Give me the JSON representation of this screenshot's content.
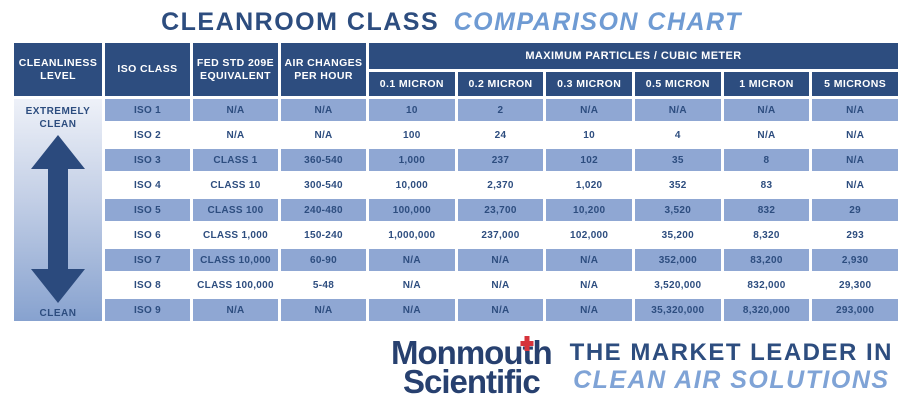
{
  "title": {
    "part1": "CLEANROOM CLASS",
    "part2": "COMPARISON CHART"
  },
  "colors": {
    "header_navy": "#2d4d7f",
    "row_light_blue": "#8fa7d3",
    "row_white": "#ffffff",
    "title_accent_blue": "#6f9bd3",
    "tagline_light_blue": "#7fa3d6",
    "logo_navy": "#27406f",
    "logo_cross_red": "#d6333b",
    "gradient_top": "#eef1f8",
    "gradient_bottom": "#87a2cf"
  },
  "icons": {
    "cleanliness_scale": "double-headed-vertical-arrow"
  },
  "chart_data": {
    "type": "table",
    "title": "CLEANROOM CLASS COMPARISON CHART",
    "row_group_headers": [
      "CLEANLINESS LEVEL",
      "ISO CLASS",
      "FED STD 209E EQUIVALENT",
      "AIR CHANGES PER HOUR"
    ],
    "particles_group_header": "MAXIMUM PARTICLES / CUBIC METER",
    "micron_headers": [
      "0.1 MICRON",
      "0.2 MICRON",
      "0.3 MICRON",
      "0.5 MICRON",
      "1 MICRON",
      "5 MICRONS"
    ],
    "cleanliness_scale": {
      "top": "EXTREMELY CLEAN",
      "bottom": "CLEAN"
    },
    "rows": [
      {
        "iso_class": "ISO 1",
        "fed_std_209e": "N/A",
        "air_changes_per_hour": "N/A",
        "particles": [
          "10",
          "2",
          "N/A",
          "N/A",
          "N/A",
          "N/A"
        ]
      },
      {
        "iso_class": "ISO 2",
        "fed_std_209e": "N/A",
        "air_changes_per_hour": "N/A",
        "particles": [
          "100",
          "24",
          "10",
          "4",
          "N/A",
          "N/A"
        ]
      },
      {
        "iso_class": "ISO 3",
        "fed_std_209e": "CLASS 1",
        "air_changes_per_hour": "360-540",
        "particles": [
          "1,000",
          "237",
          "102",
          "35",
          "8",
          "N/A"
        ]
      },
      {
        "iso_class": "ISO 4",
        "fed_std_209e": "CLASS 10",
        "air_changes_per_hour": "300-540",
        "particles": [
          "10,000",
          "2,370",
          "1,020",
          "352",
          "83",
          "N/A"
        ]
      },
      {
        "iso_class": "ISO 5",
        "fed_std_209e": "CLASS 100",
        "air_changes_per_hour": "240-480",
        "particles": [
          "100,000",
          "23,700",
          "10,200",
          "3,520",
          "832",
          "29"
        ]
      },
      {
        "iso_class": "ISO 6",
        "fed_std_209e": "CLASS 1,000",
        "air_changes_per_hour": "150-240",
        "particles": [
          "1,000,000",
          "237,000",
          "102,000",
          "35,200",
          "8,320",
          "293"
        ]
      },
      {
        "iso_class": "ISO 7",
        "fed_std_209e": "CLASS 10,000",
        "air_changes_per_hour": "60-90",
        "particles": [
          "N/A",
          "N/A",
          "N/A",
          "352,000",
          "83,200",
          "2,930"
        ]
      },
      {
        "iso_class": "ISO 8",
        "fed_std_209e": "CLASS 100,000",
        "air_changes_per_hour": "5-48",
        "particles": [
          "N/A",
          "N/A",
          "N/A",
          "3,520,000",
          "832,000",
          "29,300"
        ]
      },
      {
        "iso_class": "ISO 9",
        "fed_std_209e": "N/A",
        "air_changes_per_hour": "N/A",
        "particles": [
          "N/A",
          "N/A",
          "N/A",
          "35,320,000",
          "8,320,000",
          "293,000"
        ]
      }
    ]
  },
  "footer": {
    "logo_word1_pre": "Monmou",
    "logo_word1_t": "t",
    "logo_word1_post": "h",
    "logo_word2": "Scientific",
    "tagline_line1": "THE MARKET LEADER IN",
    "tagline_line2": "CLEAN AIR SOLUTIONS"
  }
}
